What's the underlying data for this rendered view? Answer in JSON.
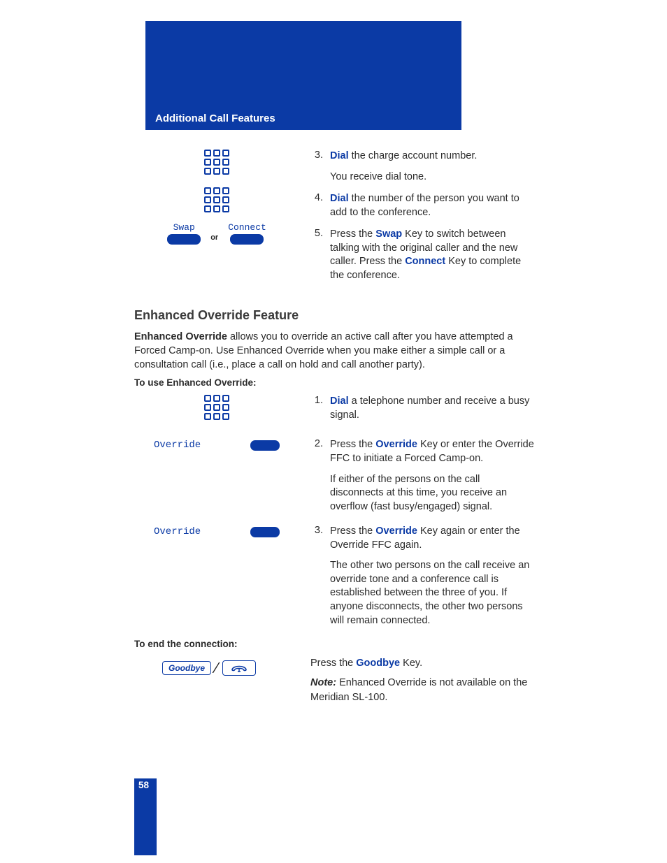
{
  "header": {
    "title": "Additional Call Features"
  },
  "topSteps": [
    {
      "num": "3.",
      "paras": [
        {
          "parts": [
            {
              "kw": "Dial"
            },
            {
              "t": " the charge account number."
            }
          ]
        },
        {
          "parts": [
            {
              "t": "You receive dial tone."
            }
          ]
        }
      ]
    },
    {
      "num": "4.",
      "paras": [
        {
          "parts": [
            {
              "kw": "Dial"
            },
            {
              "t": " the number of the person you want to add to the conference."
            }
          ]
        }
      ]
    },
    {
      "num": "5.",
      "paras": [
        {
          "parts": [
            {
              "t": "Press the "
            },
            {
              "kw": "Swap"
            },
            {
              "t": " Key to switch between talking with the original caller and the new caller. Press the "
            },
            {
              "kw": "Connect"
            },
            {
              "t": " Key to complete the conference."
            }
          ]
        }
      ]
    }
  ],
  "swapLabel": "Swap",
  "connectLabel": "Connect",
  "orLabel": "or",
  "sectionTitle": "Enhanced Override Feature",
  "intro": {
    "parts": [
      {
        "b": "Enhanced Override"
      },
      {
        "t": " allows you to override an active call after you have attempted a Forced Camp-on. Use Enhanced Override when you make either a simple call or a consultation call (i.e., place a call on hold and call another party)."
      }
    ]
  },
  "subhead1": "To use Enhanced Override:",
  "overrideLabel": "Override",
  "midSteps": [
    {
      "left": "keypad",
      "num": "1.",
      "paras": [
        {
          "parts": [
            {
              "kw": "Dial"
            },
            {
              "t": " a telephone number and receive a busy signal."
            }
          ]
        }
      ]
    },
    {
      "left": "override",
      "num": "2.",
      "paras": [
        {
          "parts": [
            {
              "t": "Press the "
            },
            {
              "kw": "Override"
            },
            {
              "t": " Key or enter the Override FFC to initiate a Forced Camp-on."
            }
          ]
        },
        {
          "parts": [
            {
              "t": "If either of the persons on the call disconnects at this time, you receive an overflow (fast busy/engaged) signal."
            }
          ]
        }
      ]
    },
    {
      "left": "override",
      "num": "3.",
      "paras": [
        {
          "parts": [
            {
              "t": "Press the "
            },
            {
              "kw": "Override"
            },
            {
              "t": " Key again or enter the Override FFC again."
            }
          ]
        },
        {
          "parts": [
            {
              "t": "The other two persons on the call receive an override tone and a conference call is established between the three of you. If anyone disconnects, the other two persons will remain connected."
            }
          ]
        }
      ]
    }
  ],
  "subhead2": "To end the connection:",
  "goodbyeLabel": "Goodbye",
  "endStep": {
    "paras": [
      {
        "parts": [
          {
            "t": "Press the "
          },
          {
            "kw": "Goodbye"
          },
          {
            "t": " Key."
          }
        ]
      }
    ]
  },
  "note": {
    "label": "Note:",
    "text": " Enhanced Override is not available on the Meridian SL-100."
  },
  "pageNumber": "58"
}
